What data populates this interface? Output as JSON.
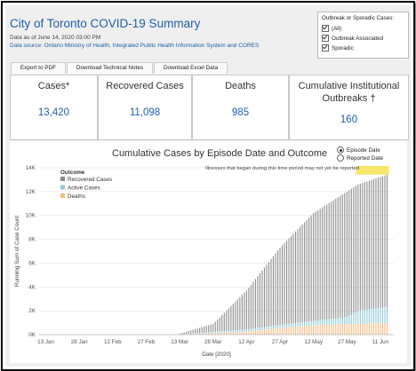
{
  "header": {
    "title": "City of Toronto COVID-19 Summary",
    "date": "Data as of June 14, 2020 03:00 PM",
    "source": "Data source: Ontario Ministry of Health, Integrated Public Health Information System and CORES"
  },
  "filter": {
    "title": "Outbreak or Sporadic Cases:",
    "options": [
      {
        "label": "(All)",
        "checked": true
      },
      {
        "label": "Outbreak Associated",
        "checked": true
      },
      {
        "label": "Sporadic",
        "checked": true
      }
    ]
  },
  "tabs": [
    "Export to PDF",
    "Download Technical Notes",
    "Download Excel Data"
  ],
  "cards": [
    {
      "label": "Cases*",
      "value": "13,420"
    },
    {
      "label": "Recovered Cases",
      "value": "11,098"
    },
    {
      "label": "Deaths",
      "value": "985"
    },
    {
      "label": "Cumulative Institutional Outbreaks †",
      "value": "160"
    }
  ],
  "chart": {
    "radio": [
      {
        "label": "Episode Date",
        "selected": true
      },
      {
        "label": "Reported Date",
        "selected": false
      }
    ]
  },
  "chart_data": {
    "type": "bar",
    "title": "Cumulative Cases by Episode Date and Outcome",
    "xlabel": "Date [2020]",
    "ylabel": "Running Sum of Case Count",
    "ylim": [
      0,
      14000
    ],
    "yticks": [
      "0K",
      "2K",
      "4K",
      "6K",
      "8K",
      "10K",
      "12K",
      "14K"
    ],
    "xticks": [
      "13 Jan",
      "28 Jan",
      "12 Feb",
      "27 Feb",
      "13 Mar",
      "28 Mar",
      "12 Apr",
      "27 Apr",
      "12 May",
      "27 May",
      "11 Jun"
    ],
    "legend_title": "Outcome",
    "legend_position": "top-left",
    "annotation": "Illnesses that began during this time period may not yet be reported",
    "stacked": true,
    "series": [
      {
        "name": "Recovered Cases",
        "color": "#8c8c8c"
      },
      {
        "name": "Active Cases",
        "color": "#8fcad6"
      },
      {
        "name": "Deaths",
        "color": "#f5bb80"
      }
    ],
    "x_start": "13 Mar",
    "x_end": "14 Jun",
    "totals_key": [
      {
        "date": "13 Mar",
        "total": 80
      },
      {
        "date": "28 Mar",
        "total": 900
      },
      {
        "date": "12 Apr",
        "total": 3700
      },
      {
        "date": "27 Apr",
        "total": 7300
      },
      {
        "date": "12 May",
        "total": 10200
      },
      {
        "date": "27 May",
        "total": 12000
      },
      {
        "date": "1 Jun",
        "total": 12600
      },
      {
        "date": "14 Jun",
        "total": 13420
      }
    ],
    "deaths_key": [
      {
        "date": "13 Mar",
        "value": 0
      },
      {
        "date": "12 Apr",
        "value": 250
      },
      {
        "date": "27 Apr",
        "value": 550
      },
      {
        "date": "12 May",
        "value": 800
      },
      {
        "date": "14 Jun",
        "value": 985
      }
    ],
    "active_key": [
      {
        "date": "13 Mar",
        "value": 20
      },
      {
        "date": "12 May",
        "value": 350
      },
      {
        "date": "27 May",
        "value": 600
      },
      {
        "date": "1 Jun",
        "value": 1100
      },
      {
        "date": "14 Jun",
        "value": 1337
      }
    ]
  }
}
